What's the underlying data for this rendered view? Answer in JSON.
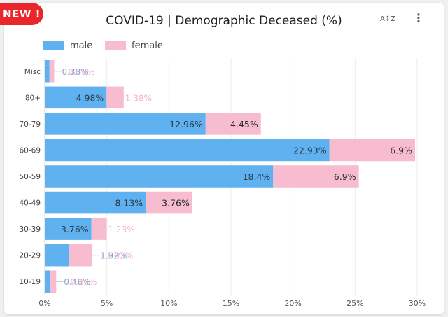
{
  "badge": {
    "label": "NEW !"
  },
  "header": {
    "title": "COVID-19  |  Demographic Deceased (%)",
    "sort_icon_label": "A↕Z",
    "more_icon_label": "⋮"
  },
  "colors": {
    "male": "#5fb1ef",
    "female": "#f7bcd0",
    "badge": "#e8262b"
  },
  "legend": [
    {
      "name": "male",
      "color": "#5fb1ef"
    },
    {
      "name": "female",
      "color": "#f7bcd0"
    }
  ],
  "chart_data": {
    "type": "bar",
    "orientation": "horizontal",
    "stacked": true,
    "title": "COVID-19  |  Demographic Deceased (%)",
    "categories": [
      "Misc",
      "80+",
      "70-79",
      "60-69",
      "50-59",
      "40-49",
      "30-39",
      "20-29",
      "10-19"
    ],
    "series": [
      {
        "name": "male",
        "color": "#5fb1ef",
        "values": [
          0.38,
          4.98,
          12.96,
          22.93,
          18.4,
          8.13,
          3.76,
          1.92,
          0.46
        ]
      },
      {
        "name": "female",
        "color": "#f7bcd0",
        "values": [
          0.38,
          1.38,
          4.45,
          6.9,
          6.9,
          3.76,
          1.23,
          1.92,
          0.46
        ]
      }
    ],
    "data_labels": {
      "male": [
        "0.38%",
        "4.98%",
        "12.96%",
        "22.93%",
        "18.4%",
        "8.13%",
        "3.76%",
        "1.92%",
        "0.46%"
      ],
      "female": [
        "0.38%",
        "1.38%",
        "4.45%",
        "6.9%",
        "6.9%",
        "3.76%",
        "1.23%",
        "1.92%",
        "0.46%"
      ]
    },
    "xlim": [
      0,
      30
    ],
    "xticks": [
      "0%",
      "5%",
      "10%",
      "15%",
      "20%",
      "25%",
      "30%"
    ],
    "xlabel": "",
    "ylabel": "",
    "grid": true,
    "legend_position": "top-left"
  }
}
